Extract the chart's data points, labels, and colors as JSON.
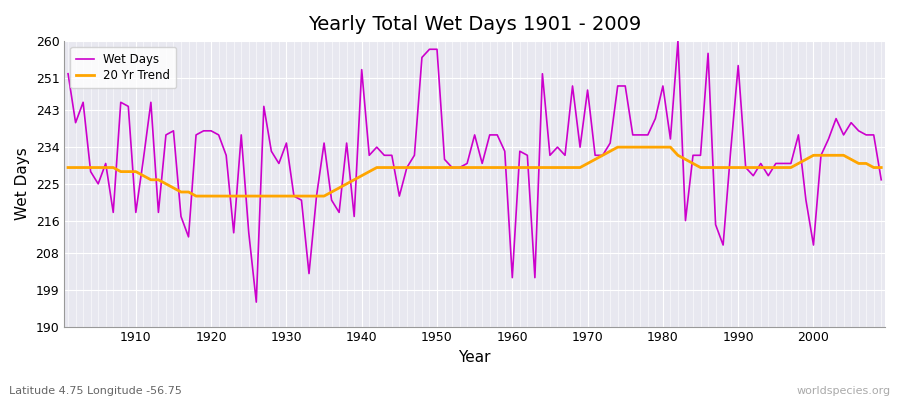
{
  "title": "Yearly Total Wet Days 1901 - 2009",
  "xlabel": "Year",
  "ylabel": "Wet Days",
  "subtitle": "Latitude 4.75 Longitude -56.75",
  "watermark": "worldspecies.org",
  "ylim": [
    190,
    260
  ],
  "yticks": [
    190,
    199,
    208,
    216,
    225,
    234,
    243,
    251,
    260
  ],
  "xlim_start": 1901,
  "xlim_end": 2009,
  "wet_days_color": "#cc00cc",
  "trend_color": "#ffa500",
  "bg_color": "#e8e8f0",
  "wet_days": [
    252,
    240,
    245,
    228,
    225,
    230,
    218,
    245,
    244,
    218,
    231,
    245,
    218,
    237,
    238,
    217,
    212,
    237,
    238,
    238,
    237,
    232,
    213,
    237,
    213,
    196,
    244,
    233,
    230,
    235,
    222,
    221,
    203,
    222,
    235,
    221,
    218,
    235,
    217,
    253,
    232,
    234,
    232,
    232,
    222,
    229,
    232,
    256,
    258,
    258,
    231,
    229,
    229,
    230,
    237,
    230,
    237,
    237,
    233,
    202,
    233,
    232,
    202,
    252,
    232,
    234,
    232,
    249,
    234,
    248,
    232,
    232,
    235,
    249,
    249,
    237,
    237,
    237,
    241,
    249,
    236,
    260,
    216,
    232,
    232,
    257,
    215,
    210,
    233,
    254,
    229,
    227,
    230,
    227,
    230,
    230,
    230,
    237,
    221,
    210,
    232,
    236,
    241,
    237,
    240,
    238,
    237,
    237,
    226
  ],
  "trend": [
    229,
    229,
    229,
    229,
    229,
    229,
    229,
    228,
    228,
    228,
    227,
    226,
    226,
    225,
    224,
    223,
    223,
    222,
    222,
    222,
    222,
    222,
    222,
    222,
    222,
    222,
    222,
    222,
    222,
    222,
    222,
    222,
    222,
    222,
    222,
    223,
    224,
    225,
    226,
    227,
    228,
    229,
    229,
    229,
    229,
    229,
    229,
    229,
    229,
    229,
    229,
    229,
    229,
    229,
    229,
    229,
    229,
    229,
    229,
    229,
    229,
    229,
    229,
    229,
    229,
    229,
    229,
    229,
    229,
    230,
    231,
    232,
    233,
    234,
    234,
    234,
    234,
    234,
    234,
    234,
    234,
    232,
    231,
    230,
    229,
    229,
    229,
    229,
    229,
    229,
    229,
    229,
    229,
    229,
    229,
    229,
    229,
    230,
    231,
    232,
    232,
    232,
    232,
    232,
    231,
    230,
    230,
    229,
    229
  ]
}
